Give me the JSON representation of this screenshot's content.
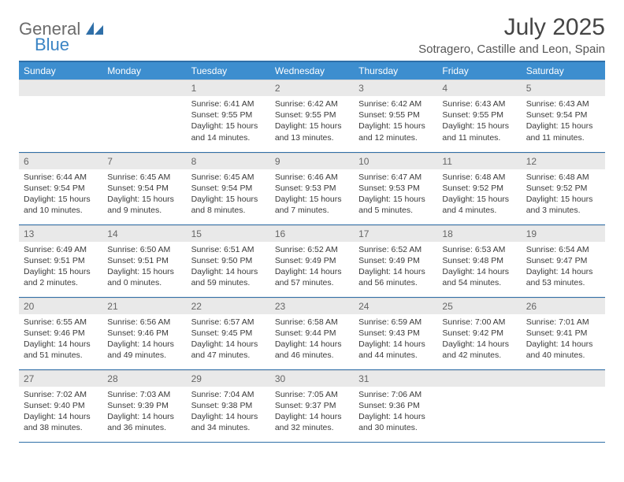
{
  "logo": {
    "part1": "General",
    "part2": "Blue"
  },
  "title": "July 2025",
  "location": "Sotragero, Castille and Leon, Spain",
  "colors": {
    "header_bg": "#3d8ecf",
    "rule": "#2f6fa8",
    "daynum_bg": "#e9e9e9",
    "logo_gray": "#6b6b6b",
    "logo_blue": "#3a84c4"
  },
  "weekdays": [
    "Sunday",
    "Monday",
    "Tuesday",
    "Wednesday",
    "Thursday",
    "Friday",
    "Saturday"
  ],
  "first_weekday_index": 2,
  "days": [
    {
      "n": 1,
      "sunrise": "6:41 AM",
      "sunset": "9:55 PM",
      "daylight": "15 hours and 14 minutes."
    },
    {
      "n": 2,
      "sunrise": "6:42 AM",
      "sunset": "9:55 PM",
      "daylight": "15 hours and 13 minutes."
    },
    {
      "n": 3,
      "sunrise": "6:42 AM",
      "sunset": "9:55 PM",
      "daylight": "15 hours and 12 minutes."
    },
    {
      "n": 4,
      "sunrise": "6:43 AM",
      "sunset": "9:55 PM",
      "daylight": "15 hours and 11 minutes."
    },
    {
      "n": 5,
      "sunrise": "6:43 AM",
      "sunset": "9:54 PM",
      "daylight": "15 hours and 11 minutes."
    },
    {
      "n": 6,
      "sunrise": "6:44 AM",
      "sunset": "9:54 PM",
      "daylight": "15 hours and 10 minutes."
    },
    {
      "n": 7,
      "sunrise": "6:45 AM",
      "sunset": "9:54 PM",
      "daylight": "15 hours and 9 minutes."
    },
    {
      "n": 8,
      "sunrise": "6:45 AM",
      "sunset": "9:54 PM",
      "daylight": "15 hours and 8 minutes."
    },
    {
      "n": 9,
      "sunrise": "6:46 AM",
      "sunset": "9:53 PM",
      "daylight": "15 hours and 7 minutes."
    },
    {
      "n": 10,
      "sunrise": "6:47 AM",
      "sunset": "9:53 PM",
      "daylight": "15 hours and 5 minutes."
    },
    {
      "n": 11,
      "sunrise": "6:48 AM",
      "sunset": "9:52 PM",
      "daylight": "15 hours and 4 minutes."
    },
    {
      "n": 12,
      "sunrise": "6:48 AM",
      "sunset": "9:52 PM",
      "daylight": "15 hours and 3 minutes."
    },
    {
      "n": 13,
      "sunrise": "6:49 AM",
      "sunset": "9:51 PM",
      "daylight": "15 hours and 2 minutes."
    },
    {
      "n": 14,
      "sunrise": "6:50 AM",
      "sunset": "9:51 PM",
      "daylight": "15 hours and 0 minutes."
    },
    {
      "n": 15,
      "sunrise": "6:51 AM",
      "sunset": "9:50 PM",
      "daylight": "14 hours and 59 minutes."
    },
    {
      "n": 16,
      "sunrise": "6:52 AM",
      "sunset": "9:49 PM",
      "daylight": "14 hours and 57 minutes."
    },
    {
      "n": 17,
      "sunrise": "6:52 AM",
      "sunset": "9:49 PM",
      "daylight": "14 hours and 56 minutes."
    },
    {
      "n": 18,
      "sunrise": "6:53 AM",
      "sunset": "9:48 PM",
      "daylight": "14 hours and 54 minutes."
    },
    {
      "n": 19,
      "sunrise": "6:54 AM",
      "sunset": "9:47 PM",
      "daylight": "14 hours and 53 minutes."
    },
    {
      "n": 20,
      "sunrise": "6:55 AM",
      "sunset": "9:46 PM",
      "daylight": "14 hours and 51 minutes."
    },
    {
      "n": 21,
      "sunrise": "6:56 AM",
      "sunset": "9:46 PM",
      "daylight": "14 hours and 49 minutes."
    },
    {
      "n": 22,
      "sunrise": "6:57 AM",
      "sunset": "9:45 PM",
      "daylight": "14 hours and 47 minutes."
    },
    {
      "n": 23,
      "sunrise": "6:58 AM",
      "sunset": "9:44 PM",
      "daylight": "14 hours and 46 minutes."
    },
    {
      "n": 24,
      "sunrise": "6:59 AM",
      "sunset": "9:43 PM",
      "daylight": "14 hours and 44 minutes."
    },
    {
      "n": 25,
      "sunrise": "7:00 AM",
      "sunset": "9:42 PM",
      "daylight": "14 hours and 42 minutes."
    },
    {
      "n": 26,
      "sunrise": "7:01 AM",
      "sunset": "9:41 PM",
      "daylight": "14 hours and 40 minutes."
    },
    {
      "n": 27,
      "sunrise": "7:02 AM",
      "sunset": "9:40 PM",
      "daylight": "14 hours and 38 minutes."
    },
    {
      "n": 28,
      "sunrise": "7:03 AM",
      "sunset": "9:39 PM",
      "daylight": "14 hours and 36 minutes."
    },
    {
      "n": 29,
      "sunrise": "7:04 AM",
      "sunset": "9:38 PM",
      "daylight": "14 hours and 34 minutes."
    },
    {
      "n": 30,
      "sunrise": "7:05 AM",
      "sunset": "9:37 PM",
      "daylight": "14 hours and 32 minutes."
    },
    {
      "n": 31,
      "sunrise": "7:06 AM",
      "sunset": "9:36 PM",
      "daylight": "14 hours and 30 minutes."
    }
  ],
  "labels": {
    "sunrise": "Sunrise: ",
    "sunset": "Sunset: ",
    "daylight": "Daylight: "
  }
}
